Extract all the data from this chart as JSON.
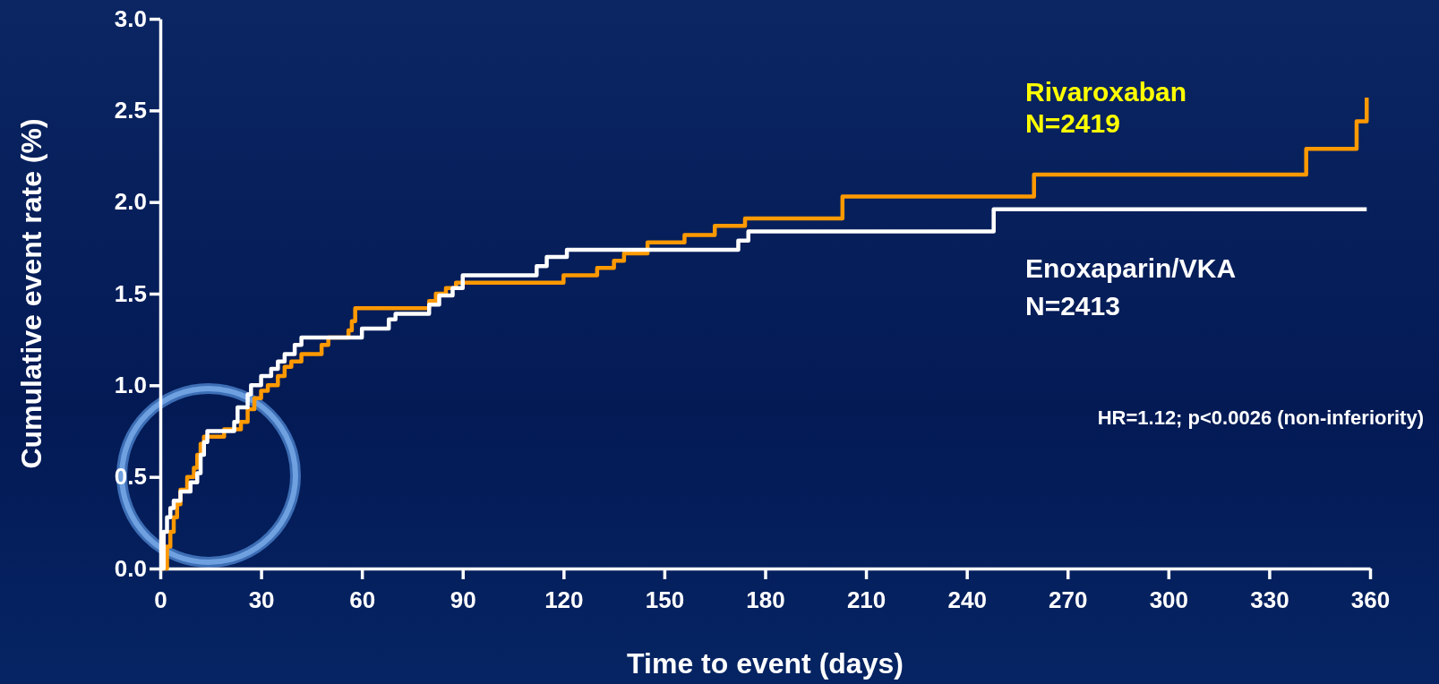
{
  "chart_data": {
    "type": "step",
    "xlabel": "Time to event (days)",
    "ylabel": "Cumulative event rate (%)",
    "xlim": [
      0,
      360
    ],
    "xticks": [
      0,
      30,
      60,
      90,
      120,
      150,
      180,
      210,
      240,
      270,
      300,
      330,
      360
    ],
    "ylim": [
      0,
      3
    ],
    "yticks": [
      {
        "value": 0,
        "label": "0.0"
      },
      {
        "value": 0.5,
        "label": "0.5"
      },
      {
        "value": 1,
        "label": "1.0"
      },
      {
        "value": 1.5,
        "label": "1.5"
      },
      {
        "value": 2,
        "label": "2.0"
      },
      {
        "value": 2.5,
        "label": "2.5"
      },
      {
        "value": 3,
        "label": "3.0"
      }
    ],
    "grid": false,
    "line_style": "solid",
    "marker": "none",
    "series": [
      {
        "name": "Rivaroxaban",
        "color": "#ff9900",
        "x": [
          0,
          2,
          3,
          4,
          5,
          6,
          8,
          10,
          11,
          12,
          13,
          19,
          24,
          26,
          28,
          30,
          32,
          35,
          37,
          39,
          42,
          48,
          50,
          56,
          57,
          58,
          80,
          82,
          85,
          88,
          120,
          130,
          135,
          138,
          145,
          156,
          165,
          174,
          203,
          260,
          341,
          356,
          359
        ],
        "values": [
          0,
          0.12,
          0.2,
          0.28,
          0.35,
          0.43,
          0.5,
          0.55,
          0.62,
          0.68,
          0.72,
          0.76,
          0.8,
          0.87,
          0.93,
          0.97,
          1.0,
          1.05,
          1.1,
          1.13,
          1.17,
          1.22,
          1.26,
          1.3,
          1.35,
          1.42,
          1.46,
          1.5,
          1.53,
          1.56,
          1.6,
          1.64,
          1.68,
          1.72,
          1.78,
          1.82,
          1.87,
          1.91,
          2.03,
          2.15,
          2.29,
          2.44,
          2.57
        ]
      },
      {
        "name": "Enoxaparin/VKA",
        "color": "#ffffff",
        "x": [
          0,
          1,
          2,
          3,
          4,
          6,
          9,
          11,
          12,
          13,
          14,
          22,
          23,
          26,
          27,
          30,
          33,
          35,
          37,
          40,
          42,
          60,
          68,
          70,
          80,
          83,
          87,
          90,
          112,
          115,
          121,
          172,
          175,
          248,
          359
        ],
        "values": [
          0,
          0.2,
          0.28,
          0.33,
          0.37,
          0.42,
          0.47,
          0.52,
          0.62,
          0.69,
          0.75,
          0.8,
          0.88,
          0.95,
          1.0,
          1.05,
          1.09,
          1.13,
          1.17,
          1.22,
          1.26,
          1.31,
          1.36,
          1.39,
          1.44,
          1.49,
          1.53,
          1.6,
          1.65,
          1.7,
          1.74,
          1.79,
          1.84,
          1.96,
          1.96
        ]
      }
    ],
    "annotations": [
      "N=2419",
      "N=2413",
      "HR=1.12; p<0.0026 (non-inferiority)"
    ]
  }
}
